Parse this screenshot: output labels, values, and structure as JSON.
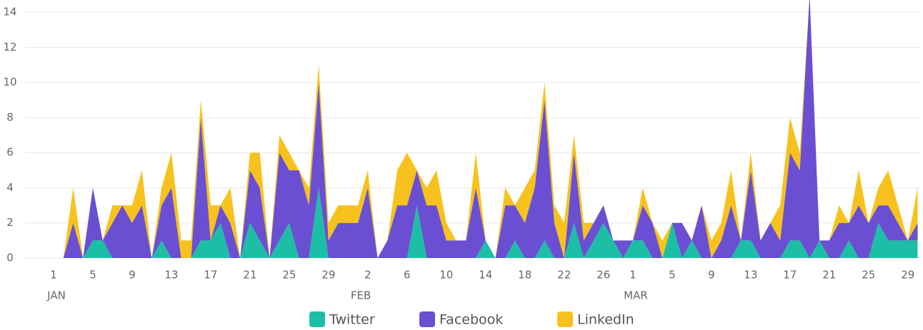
{
  "chart_data": {
    "type": "stacked_area",
    "x": [
      1,
      2,
      3,
      4,
      5,
      6,
      7,
      8,
      9,
      10,
      11,
      12,
      13,
      14,
      15,
      16,
      17,
      18,
      19,
      20,
      21,
      22,
      23,
      24,
      25,
      26,
      27,
      28,
      29,
      30,
      31,
      32,
      33,
      34,
      35,
      36,
      37,
      38,
      39,
      40,
      41,
      42,
      43,
      44,
      45,
      46,
      47,
      48,
      49,
      50,
      51,
      52,
      53,
      54,
      55,
      56,
      57,
      58,
      59,
      60,
      61,
      62,
      63,
      64,
      65,
      66,
      67,
      68,
      69,
      70,
      71,
      72,
      73,
      74,
      75,
      76,
      77,
      78,
      79,
      80,
      81,
      82,
      83,
      84,
      85,
      86,
      87,
      88,
      89
    ],
    "series": [
      {
        "name": "Twitter",
        "color": "#1cbfa6",
        "values": [
          0,
          0,
          0,
          0,
          1,
          1,
          0,
          0,
          0,
          0,
          0,
          1,
          0,
          0,
          0,
          1,
          1,
          2,
          0,
          0,
          2,
          1,
          0,
          1,
          2,
          0,
          0,
          4,
          0,
          0,
          0,
          0,
          0,
          0,
          0,
          0,
          0,
          3,
          0,
          0,
          0,
          0,
          0,
          0,
          1,
          0,
          0,
          1,
          0,
          0,
          1,
          0,
          0,
          2,
          0,
          1,
          2,
          1,
          0,
          1,
          1,
          0,
          0,
          2,
          0,
          1,
          0,
          0,
          0,
          0,
          1,
          1,
          0,
          0,
          0,
          1,
          1,
          0,
          1,
          0,
          0,
          1,
          0,
          0,
          2,
          1,
          1,
          1,
          1
        ]
      },
      {
        "name": "Facebook",
        "color": "#6a4fd2",
        "values": [
          0,
          0,
          2,
          0,
          3,
          0,
          2,
          3,
          2,
          3,
          0,
          2,
          4,
          0,
          0,
          7,
          0,
          1,
          2,
          0,
          3,
          3,
          0,
          5,
          3,
          5,
          3,
          6,
          1,
          2,
          2,
          2,
          4,
          0,
          1,
          3,
          3,
          2,
          3,
          3,
          1,
          1,
          1,
          4,
          0,
          0,
          3,
          2,
          2,
          4,
          8,
          2,
          0,
          4,
          1,
          1,
          1,
          0,
          1,
          0,
          2,
          2,
          0,
          0,
          2,
          0,
          3,
          0,
          1,
          3,
          0,
          4,
          1,
          2,
          1,
          5,
          4,
          15,
          0,
          1,
          2,
          1,
          3,
          2,
          1,
          2,
          1,
          0,
          1
        ]
      },
      {
        "name": "LinkedIn",
        "color": "#f7c21d",
        "values": [
          0,
          0,
          2,
          0,
          0,
          0,
          1,
          0,
          1,
          2,
          0,
          1,
          2,
          1,
          1,
          1,
          2,
          0,
          2,
          0,
          1,
          2,
          0,
          1,
          1,
          0,
          1,
          1,
          1,
          1,
          1,
          1,
          1,
          0,
          0,
          2,
          3,
          0,
          1,
          2,
          1,
          0,
          0,
          2,
          0,
          0,
          1,
          0,
          2,
          1,
          1,
          1,
          2,
          1,
          1,
          0,
          0,
          0,
          0,
          0,
          1,
          0,
          1,
          0,
          0,
          0,
          0,
          1,
          1,
          2,
          0,
          1,
          0,
          0,
          2,
          2,
          1,
          0,
          0,
          0,
          1,
          0,
          2,
          0,
          1,
          2,
          1,
          0,
          2
        ]
      }
    ],
    "xlim": [
      0,
      89.4
    ],
    "xticks": [
      1,
      5,
      9,
      13,
      17,
      21,
      25,
      29,
      {
        "value": 33,
        "label": "2"
      },
      {
        "value": 37,
        "label": "6"
      },
      {
        "value": 41,
        "label": "10"
      },
      {
        "value": 45,
        "label": "14"
      },
      {
        "value": 49,
        "label": "18"
      },
      {
        "value": 53,
        "label": "22"
      },
      {
        "value": 57,
        "label": "26"
      },
      {
        "value": 60,
        "label": "1"
      },
      {
        "value": 64,
        "label": "5"
      },
      {
        "value": 68,
        "label": "9"
      },
      {
        "value": 72,
        "label": "13"
      },
      {
        "value": 76,
        "label": "17"
      },
      {
        "value": 80,
        "label": "21"
      },
      {
        "value": 84,
        "label": "25"
      },
      {
        "value": 88,
        "label": "29"
      }
    ],
    "month_labels": [
      {
        "value": 1,
        "label": "JAN"
      },
      {
        "value": 32,
        "label": "FEB"
      },
      {
        "value": 60,
        "label": "MAR"
      }
    ],
    "ylim": [
      0,
      14.7
    ],
    "yticks": [
      0,
      2,
      4,
      6,
      8,
      10,
      12,
      14
    ],
    "grid": true
  }
}
